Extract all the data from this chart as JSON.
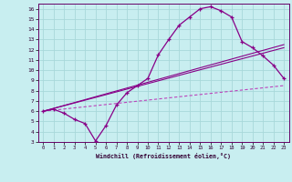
{
  "xlabel": "Windchill (Refroidissement éolien,°C)",
  "xlim": [
    -0.5,
    23.5
  ],
  "ylim": [
    3,
    16.5
  ],
  "xticks": [
    0,
    1,
    2,
    3,
    4,
    5,
    6,
    7,
    8,
    9,
    10,
    11,
    12,
    13,
    14,
    15,
    16,
    17,
    18,
    19,
    20,
    21,
    22,
    23
  ],
  "yticks": [
    3,
    4,
    5,
    6,
    7,
    8,
    9,
    10,
    11,
    12,
    13,
    14,
    15,
    16
  ],
  "bg_color": "#c8eef0",
  "grid_color": "#a8d8da",
  "line_color": "#880088",
  "line_color_dash": "#bb44bb",
  "line1_x": [
    0,
    1,
    2,
    3,
    4,
    5,
    6,
    7,
    8,
    9,
    10,
    11,
    12,
    13,
    14,
    15,
    16,
    17,
    18,
    19,
    20,
    21,
    22,
    23
  ],
  "line1_y": [
    6.0,
    6.2,
    5.8,
    5.2,
    4.8,
    3.1,
    4.6,
    6.6,
    7.8,
    8.5,
    9.2,
    11.5,
    13.0,
    14.4,
    15.2,
    16.0,
    16.2,
    15.8,
    15.2,
    12.8,
    12.2,
    11.4,
    10.5,
    9.2
  ],
  "line2_x": [
    0,
    23
  ],
  "line2_y": [
    6.0,
    12.2
  ],
  "line3_x": [
    0,
    23
  ],
  "line3_y": [
    6.0,
    12.5
  ],
  "line4_x": [
    0,
    23
  ],
  "line4_y": [
    6.0,
    8.5
  ]
}
